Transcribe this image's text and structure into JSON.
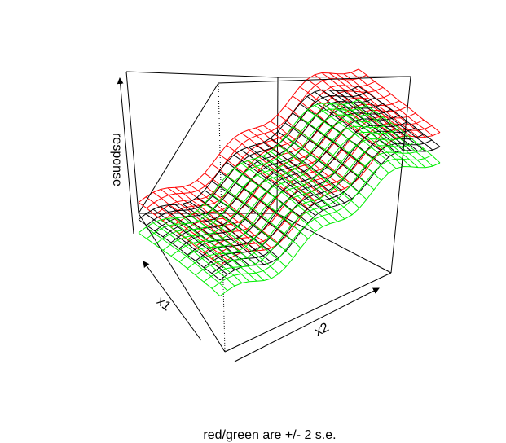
{
  "chart_data": {
    "type": "surface3d",
    "title": "",
    "caption": "red/green are +/- 2 s.e.",
    "axes": {
      "x1": {
        "label": "x1",
        "range": [
          0,
          1
        ]
      },
      "x2": {
        "label": "x2",
        "range": [
          0,
          1
        ]
      },
      "response": {
        "label": "response"
      }
    },
    "grid": {
      "x1": [
        0,
        0.1,
        0.2,
        0.3,
        0.4,
        0.5,
        0.6,
        0.7,
        0.8,
        0.9,
        1
      ],
      "x2_steps": 30
    },
    "series": [
      {
        "role": "upper",
        "color": "#ff0000",
        "profile_x1": [
          0.58,
          0.6,
          0.61,
          0.63,
          0.65,
          0.66,
          0.68,
          0.7,
          0.71,
          0.73,
          0.74
        ],
        "curve_x2": {
          "base": 0.1,
          "rise": 0.62,
          "bumps": [
            [
              0.35,
              0.35
            ],
            [
              0.65,
              0.25
            ]
          ],
          "wave": 0.04
        }
      },
      {
        "role": "fit",
        "color": "#000000",
        "profile_x1": [
          0.42,
          0.44,
          0.45,
          0.47,
          0.48,
          0.5,
          0.51,
          0.52,
          0.53,
          0.54,
          0.55
        ],
        "curve_x2": {
          "base": 0.1,
          "rise": 0.62,
          "bumps": [
            [
              0.35,
              0.35
            ],
            [
              0.65,
              0.25
            ]
          ],
          "wave": 0.04
        }
      },
      {
        "role": "lower",
        "color": "#00ee00",
        "profile_x1": [
          0.24,
          0.27,
          0.29,
          0.31,
          0.33,
          0.35,
          0.36,
          0.37,
          0.38,
          0.39,
          0.4
        ],
        "curve_x2": {
          "base": 0.1,
          "rise": 0.62,
          "bumps": [
            [
              0.35,
              0.35
            ],
            [
              0.65,
              0.25
            ]
          ],
          "wave": 0.04
        }
      }
    ]
  }
}
